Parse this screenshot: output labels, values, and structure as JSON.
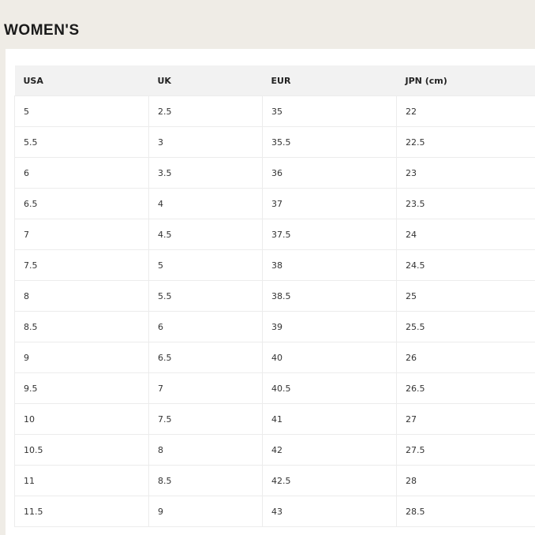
{
  "title": "WOMEN'S",
  "table": {
    "headers": [
      "USA",
      "UK",
      "EUR",
      "JPN (cm)"
    ],
    "rows": [
      [
        "5",
        "2.5",
        "35",
        "22"
      ],
      [
        "5.5",
        "3",
        "35.5",
        "22.5"
      ],
      [
        "6",
        "3.5",
        "36",
        "23"
      ],
      [
        "6.5",
        "4",
        "37",
        "23.5"
      ],
      [
        "7",
        "4.5",
        "37.5",
        "24"
      ],
      [
        "7.5",
        "5",
        "38",
        "24.5"
      ],
      [
        "8",
        "5.5",
        "38.5",
        "25"
      ],
      [
        "8.5",
        "6",
        "39",
        "25.5"
      ],
      [
        "9",
        "6.5",
        "40",
        "26"
      ],
      [
        "9.5",
        "7",
        "40.5",
        "26.5"
      ],
      [
        "10",
        "7.5",
        "41",
        "27"
      ],
      [
        "10.5",
        "8",
        "42",
        "27.5"
      ],
      [
        "11",
        "8.5",
        "42.5",
        "28"
      ],
      [
        "11.5",
        "9",
        "43",
        "28.5"
      ]
    ]
  }
}
